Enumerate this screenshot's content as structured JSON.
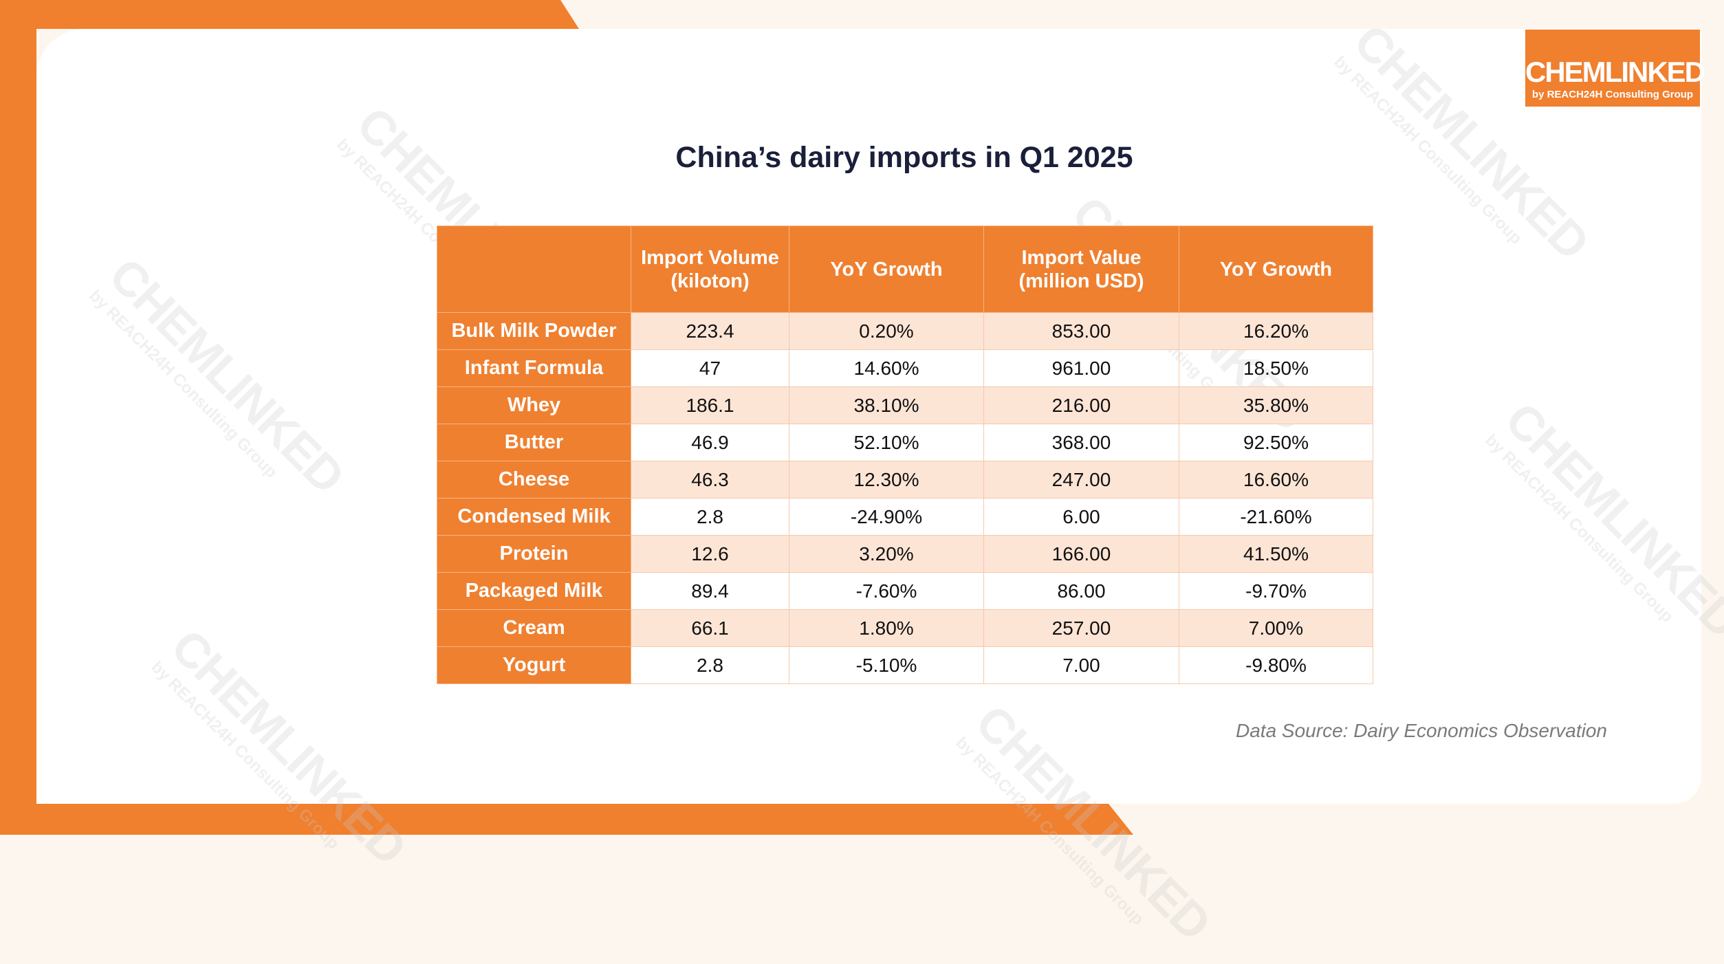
{
  "logo": {
    "name": "CHEMLINKED",
    "tagline": "by REACH24H Consulting Group"
  },
  "header": {
    "title": "China’s dairy imports in Q1 2025"
  },
  "table": {
    "columns": [
      "Import Volume (kiloton)",
      "YoY Growth",
      "Import Value (million USD)",
      "YoY Growth"
    ],
    "rows": [
      [
        "Bulk Milk Powder",
        "223.4",
        "0.20%",
        "853.00",
        "16.20%"
      ],
      [
        "Infant Formula",
        "47",
        "14.60%",
        "961.00",
        "18.50%"
      ],
      [
        "Whey",
        "186.1",
        "38.10%",
        "216.00",
        "35.80%"
      ],
      [
        "Butter",
        "46.9",
        "52.10%",
        "368.00",
        "92.50%"
      ],
      [
        "Cheese",
        "46.3",
        "12.30%",
        "247.00",
        "16.60%"
      ],
      [
        "Condensed Milk",
        "2.8",
        "-24.90%",
        "6.00",
        "-21.60%"
      ],
      [
        "Protein",
        "12.6",
        "3.20%",
        "166.00",
        "41.50%"
      ],
      [
        "Packaged Milk",
        "89.4",
        "-7.60%",
        "86.00",
        "-9.70%"
      ],
      [
        "Cream",
        "66.1",
        "1.80%",
        "257.00",
        "7.00%"
      ],
      [
        "Yogurt",
        "2.8",
        "-5.10%",
        "7.00",
        "-9.80%"
      ]
    ]
  },
  "source": "Data Source: Dairy Economics Observation"
}
